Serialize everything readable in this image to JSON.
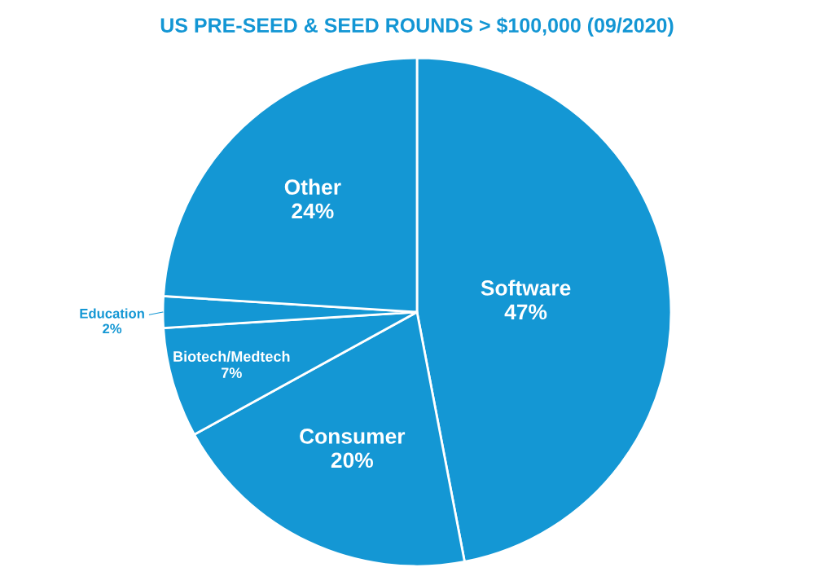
{
  "chart_data": {
    "type": "pie",
    "title": "US PRE-SEED & SEED ROUNDS > $100,000 (09/2020)",
    "categories": [
      "Software",
      "Consumer",
      "Biotech/Medtech",
      "Education",
      "Other"
    ],
    "values": [
      47,
      20,
      7,
      2,
      24
    ],
    "value_labels": [
      "47%",
      "20%",
      "7%",
      "2%",
      "24%"
    ],
    "colors": [
      "#1497d4",
      "#1497d4",
      "#1497d4",
      "#1497d4",
      "#1497d4"
    ]
  }
}
